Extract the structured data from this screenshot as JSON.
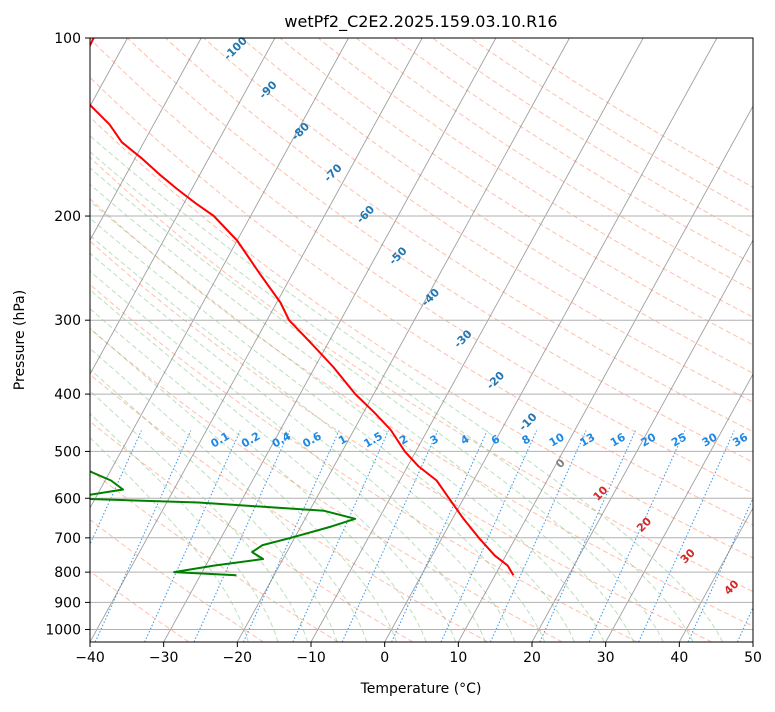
{
  "chart_data": {
    "type": "line",
    "title": "wetPf2_C2E2.2025.159.03.10.R16",
    "xlabel": "Temperature (°C)",
    "ylabel": "Pressure (hPa)",
    "xlim": [
      -40,
      50
    ],
    "ylim": [
      1050,
      100
    ],
    "y_scale": "log",
    "skew": "skew-T log-p diagram",
    "grid": true,
    "x_ticks": [
      -40,
      -30,
      -20,
      -10,
      0,
      10,
      20,
      30,
      40,
      50
    ],
    "x_tick_labels": [
      "−40",
      "−30",
      "−20",
      "−10",
      "0",
      "10",
      "20",
      "30",
      "40",
      "50"
    ],
    "y_ticks": [
      1000,
      900,
      800,
      700,
      600,
      500,
      400,
      300,
      200,
      100
    ],
    "y_tick_labels": [
      "1000",
      "900",
      "800",
      "700",
      "600",
      "500",
      "400",
      "300",
      "200",
      "100"
    ],
    "colors": {
      "temperature": "#ff0000",
      "dewpoint": "#008000",
      "dry_adiabats": "#ff8a65",
      "moist_adiabats": "#66bb6a",
      "mixing_ratio": "#1e88e5",
      "isotherms": "#7f7f7f",
      "isotherm_labels": "#1f77b4",
      "moist_labels": "#d62728",
      "frame": "#000000"
    },
    "series": [
      {
        "role": "temperature",
        "points": [
          {
            "p": 100,
            "t": -84.6
          },
          {
            "p": 105,
            "t": -84.5
          },
          {
            "p": 110,
            "t": -84.5
          },
          {
            "p": 120,
            "t": -83.0
          },
          {
            "p": 130,
            "t": -80.0
          },
          {
            "p": 140,
            "t": -76.0
          },
          {
            "p": 150,
            "t": -73.0
          },
          {
            "p": 160,
            "t": -69.0
          },
          {
            "p": 170,
            "t": -65.5
          },
          {
            "p": 180,
            "t": -62.0
          },
          {
            "p": 190,
            "t": -58.5
          },
          {
            "p": 200,
            "t": -55.0
          },
          {
            "p": 220,
            "t": -50.0
          },
          {
            "p": 250,
            "t": -44.5
          },
          {
            "p": 280,
            "t": -39.5
          },
          {
            "p": 300,
            "t": -37.0
          },
          {
            "p": 330,
            "t": -32.0
          },
          {
            "p": 360,
            "t": -27.5
          },
          {
            "p": 400,
            "t": -22.5
          },
          {
            "p": 430,
            "t": -18.5
          },
          {
            "p": 460,
            "t": -15.0
          },
          {
            "p": 500,
            "t": -11.5
          },
          {
            "p": 530,
            "t": -8.5
          },
          {
            "p": 560,
            "t": -5.0
          },
          {
            "p": 600,
            "t": -2.0
          },
          {
            "p": 650,
            "t": 1.5
          },
          {
            "p": 700,
            "t": 5.0
          },
          {
            "p": 750,
            "t": 8.5
          },
          {
            "p": 780,
            "t": 11.0
          },
          {
            "p": 810,
            "t": 12.5
          }
        ]
      },
      {
        "role": "dewpoint",
        "points": [
          {
            "p": 100,
            "t": -89.6
          },
          {
            "p": 105,
            "t": -89.7
          },
          {
            "p": 110,
            "t": -90.7
          },
          {
            "p": 120,
            "t": -93.3
          },
          {
            "p": 128,
            "t": -93.7
          },
          {
            "p": 135,
            "t": -90.7
          },
          {
            "p": 145,
            "t": -93.1
          },
          {
            "p": 160,
            "t": -96.9
          },
          {
            "p": 180,
            "t": -96.6
          },
          {
            "p": 200,
            "t": -92.9
          },
          {
            "p": 220,
            "t": -85.8
          },
          {
            "p": 240,
            "t": -82.0
          },
          {
            "p": 260,
            "t": -79.3
          },
          {
            "p": 280,
            "t": -75.3
          },
          {
            "p": 300,
            "t": -72.6
          },
          {
            "p": 320,
            "t": -70.0
          },
          {
            "p": 340,
            "t": -76.5
          },
          {
            "p": 350,
            "t": -81.4
          },
          {
            "p": 370,
            "t": -81.5
          },
          {
            "p": 380,
            "t": -82.2
          },
          {
            "p": 400,
            "t": -78.5
          },
          {
            "p": 420,
            "t": -77.3
          },
          {
            "p": 440,
            "t": -69.6
          },
          {
            "p": 460,
            "t": -66.9
          },
          {
            "p": 480,
            "t": -62.7
          },
          {
            "p": 500,
            "t": -59.0
          },
          {
            "p": 530,
            "t": -54.7
          },
          {
            "p": 560,
            "t": -49.2
          },
          {
            "p": 580,
            "t": -46.9
          },
          {
            "p": 600,
            "t": -53.8
          },
          {
            "p": 610,
            "t": -35.7
          },
          {
            "p": 630,
            "t": -18.0
          },
          {
            "p": 650,
            "t": -13.2
          },
          {
            "p": 670,
            "t": -15.9
          },
          {
            "p": 700,
            "t": -20.5
          },
          {
            "p": 720,
            "t": -23.8
          },
          {
            "p": 740,
            "t": -24.7
          },
          {
            "p": 760,
            "t": -22.7
          },
          {
            "p": 780,
            "t": -28.9
          },
          {
            "p": 800,
            "t": -33.8
          },
          {
            "p": 810,
            "t": -25.1
          }
        ]
      }
    ],
    "isotherm_labels": [
      "-100",
      "-90",
      "-80",
      "-70",
      "-60",
      "-50",
      "-40",
      "-30",
      "-20",
      "-10",
      "0"
    ],
    "moist_adiabat_labels": [
      "0",
      "10",
      "20",
      "30",
      "40"
    ],
    "mixing_ratio_labels": [
      "0.1",
      "0.2",
      "0.4",
      "0.6",
      "1",
      "1.5",
      "2",
      "3",
      "4",
      "6",
      "8",
      "10",
      "13",
      "16",
      "20",
      "25",
      "30",
      "36"
    ]
  }
}
